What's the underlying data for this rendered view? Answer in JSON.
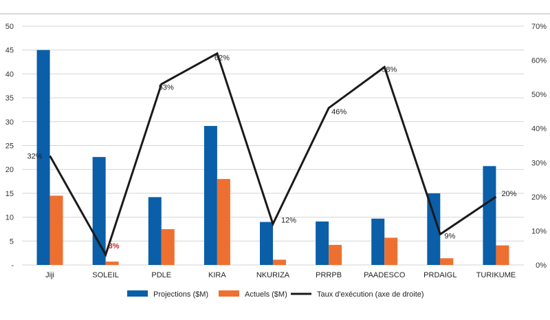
{
  "chart_data": {
    "type": "bar",
    "categories": [
      "Jiji",
      "SOLEIL",
      "PDLE",
      "KIRA",
      "NKURIZA",
      "PRRPB",
      "PAADESCO",
      "PRDAIGL",
      "TURIKUME"
    ],
    "series": [
      {
        "name": "Projections ($M)",
        "type": "bar",
        "axis": "left",
        "color": "#0b5ea8",
        "values": [
          45,
          22.6,
          14.2,
          29.1,
          9.0,
          9.1,
          9.7,
          15.0,
          20.7
        ]
      },
      {
        "name": "Actuels ($M)",
        "type": "bar",
        "axis": "left",
        "color": "#ee7030",
        "values": [
          14.5,
          0.7,
          7.5,
          18.0,
          1.1,
          4.2,
          5.7,
          1.4,
          4.1
        ]
      },
      {
        "name": "Taux d'exécution (axe de droite)",
        "type": "line",
        "axis": "right",
        "color": "#1a1a1a",
        "values": [
          32,
          3,
          53,
          62,
          12,
          46,
          58,
          9,
          20
        ]
      }
    ],
    "data_labels": [
      "32%",
      "3%",
      "53%",
      "62%",
      "12%",
      "46%",
      "58%",
      "9%",
      "20%"
    ],
    "highlight_label_color": "#c0282d",
    "highlight_index": 1,
    "left_axis": {
      "ylim": [
        0,
        50
      ],
      "ticks": [
        "-",
        "5",
        "10",
        "15",
        "20",
        "25",
        "30",
        "35",
        "40",
        "45",
        "50"
      ]
    },
    "right_axis": {
      "ylim": [
        0,
        70
      ],
      "ticks": [
        "0%",
        "10%",
        "20%",
        "30%",
        "40%",
        "50%",
        "60%",
        "70%"
      ]
    },
    "grid": true,
    "legend_position": "bottom",
    "title": "",
    "xlabel": "",
    "ylabel": ""
  }
}
